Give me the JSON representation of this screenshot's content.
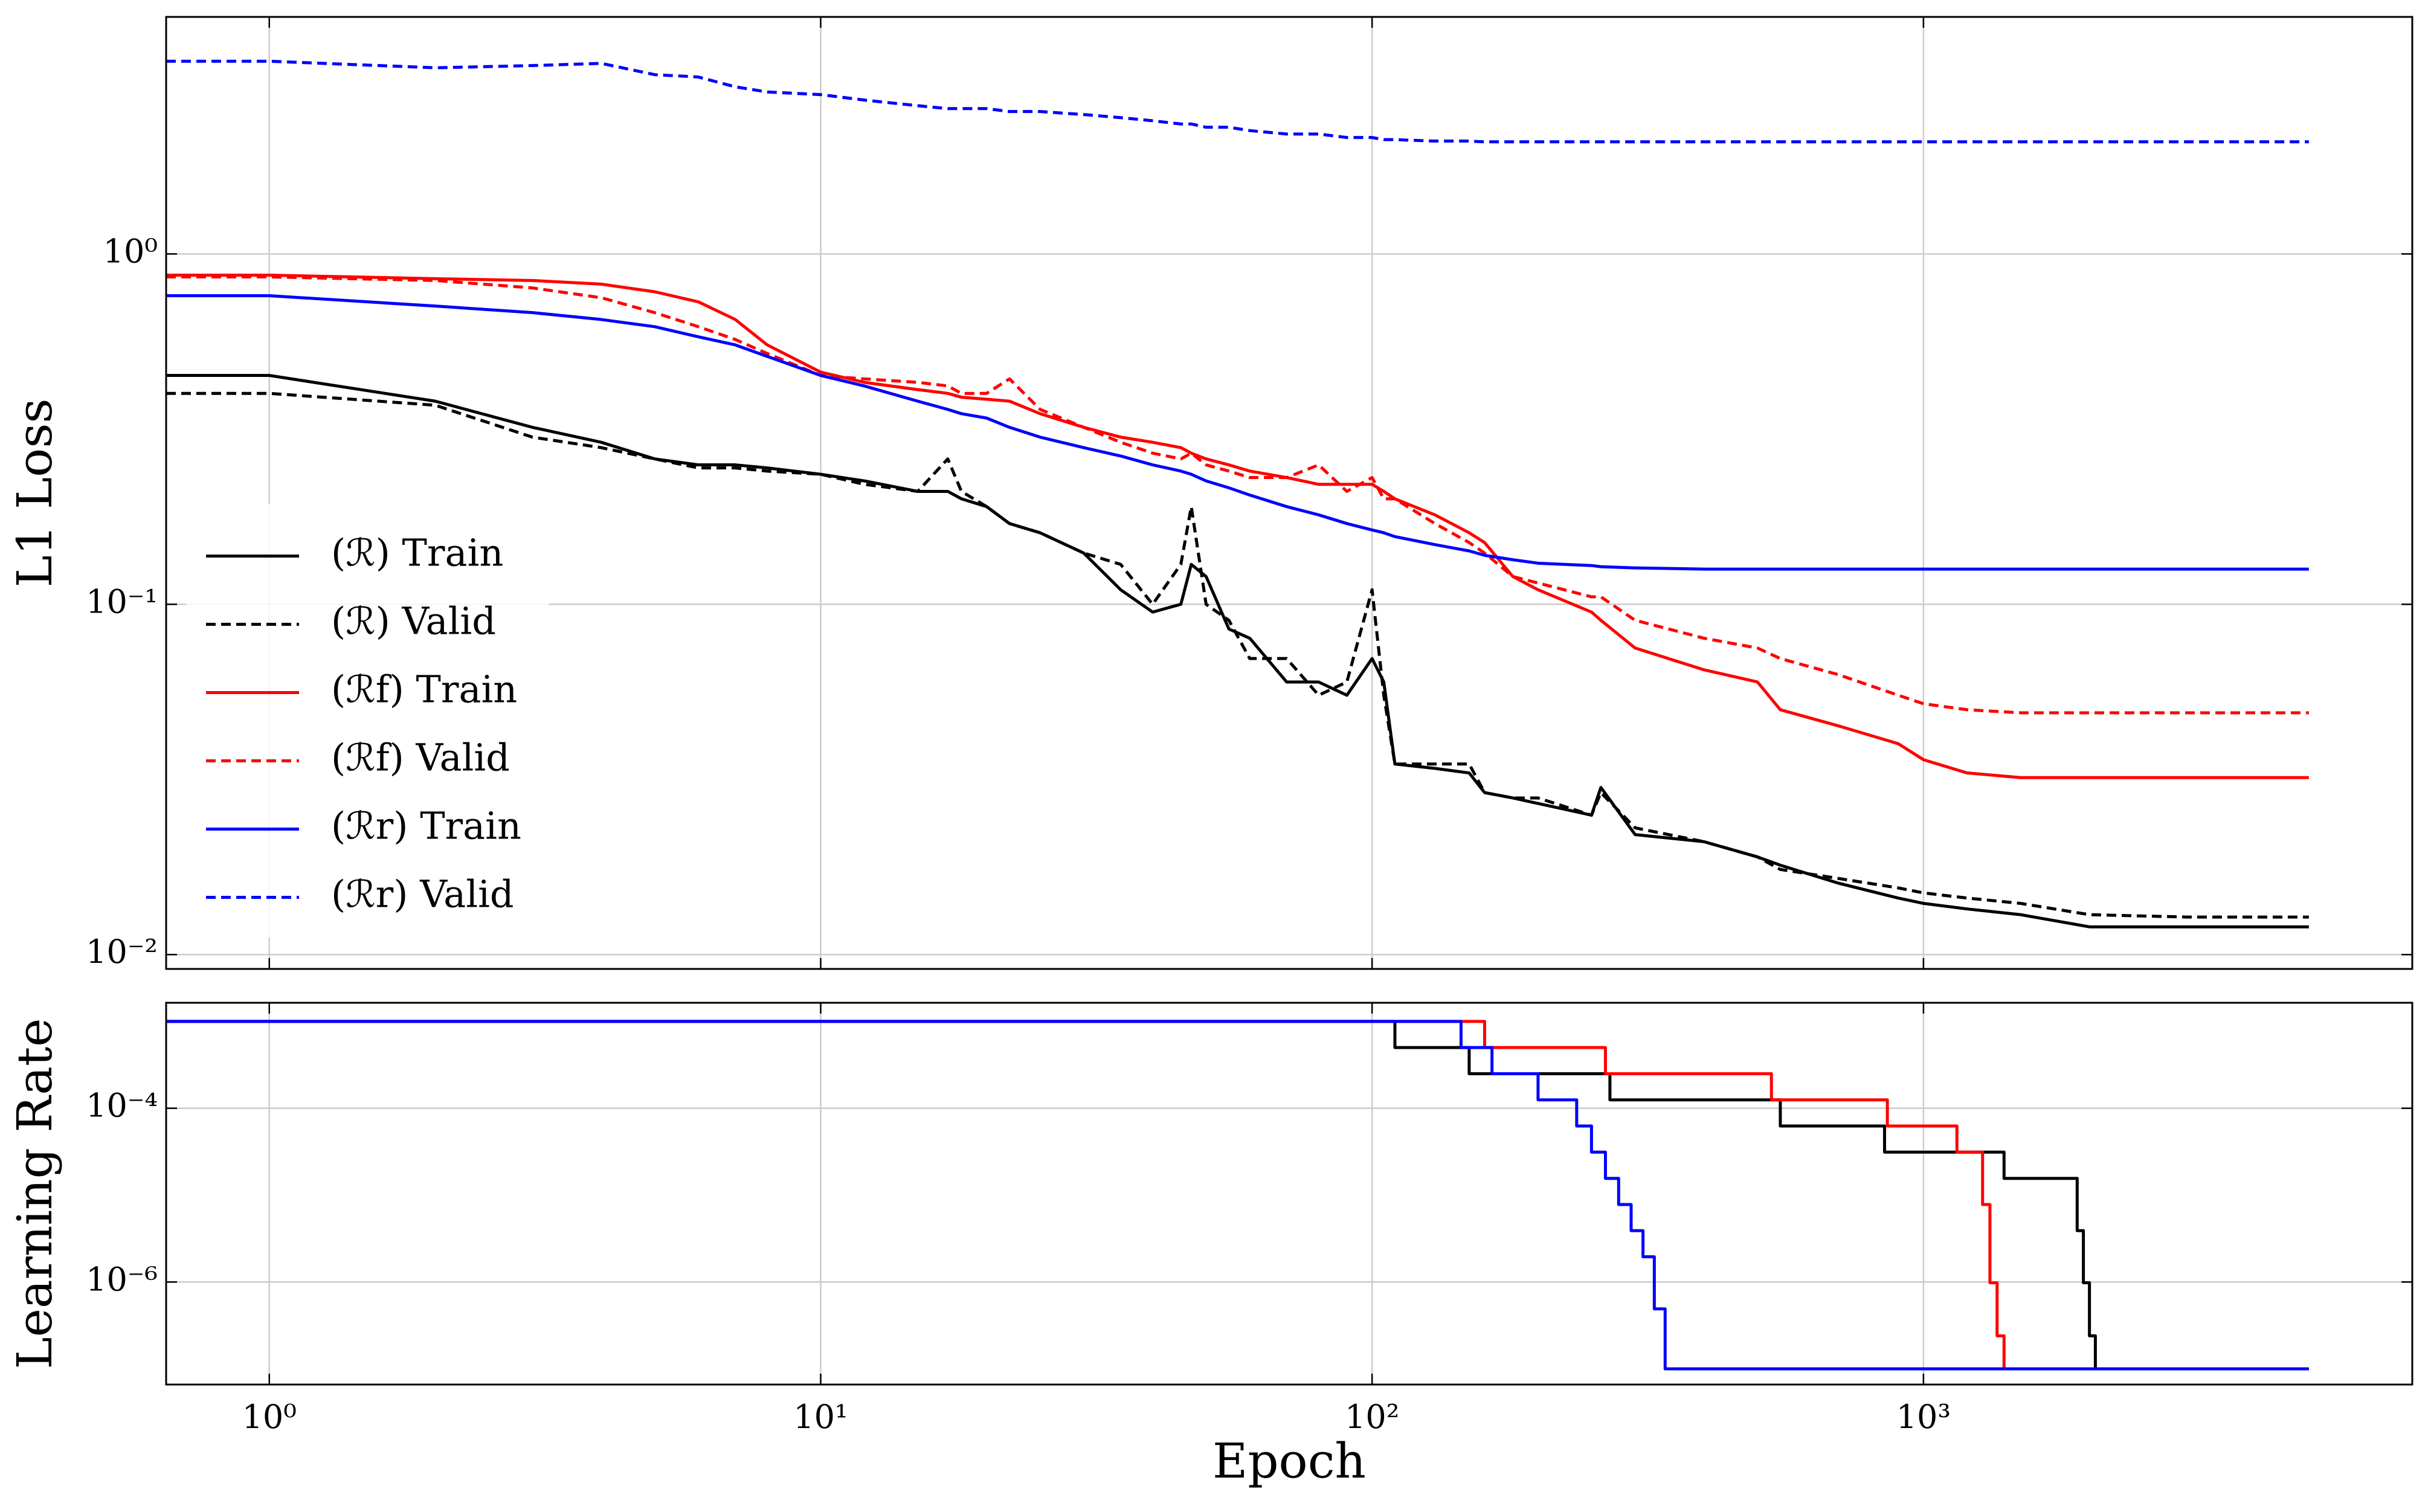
{
  "chart_data": [
    {
      "type": "line",
      "ylabel": "L1 Loss",
      "xscale": "log",
      "yscale": "log",
      "grid": true,
      "legend": "lower left",
      "xlim": [
        0.65,
        7700
      ],
      "ylim": [
        0.0091,
        4.75
      ],
      "xticks": [
        {
          "value": 1,
          "label": "10⁰"
        },
        {
          "value": 10,
          "label": "10¹"
        },
        {
          "value": 100,
          "label": "10²"
        },
        {
          "value": 1000,
          "label": "10³"
        }
      ],
      "yticks": [
        {
          "value": 0.01,
          "label": "10⁻²"
        },
        {
          "value": 0.1,
          "label": "10⁻¹"
        },
        {
          "value": 1,
          "label": "10⁰"
        }
      ],
      "x": [
        0.65,
        1,
        2,
        3,
        4,
        5,
        6,
        7,
        8,
        10,
        12,
        15,
        17,
        18,
        20,
        22,
        25,
        30,
        35,
        40,
        45,
        47,
        50,
        55,
        60,
        70,
        80,
        90,
        100,
        105,
        110,
        130,
        150,
        160,
        180,
        200,
        250,
        260,
        300,
        400,
        500,
        550,
        700,
        900,
        1000,
        1200,
        1500,
        2000,
        3000,
        5000
      ],
      "series": [
        {
          "name": "(ℛ) Train",
          "color": "#000000",
          "dash": false,
          "values": [
            0.45,
            0.45,
            0.38,
            0.32,
            0.29,
            0.26,
            0.25,
            0.25,
            0.245,
            0.235,
            0.225,
            0.21,
            0.21,
            0.2,
            0.19,
            0.17,
            0.16,
            0.14,
            0.11,
            0.095,
            0.1,
            0.13,
            0.12,
            0.085,
            0.08,
            0.06,
            0.06,
            0.055,
            0.07,
            0.06,
            0.035,
            0.034,
            0.033,
            0.029,
            0.028,
            0.027,
            0.025,
            0.03,
            0.022,
            0.021,
            0.019,
            0.018,
            0.016,
            0.0145,
            0.014,
            0.0135,
            0.013,
            0.012,
            0.012,
            0.012
          ]
        },
        {
          "name": "(ℛ) Valid",
          "color": "#000000",
          "dash": true,
          "values": [
            0.4,
            0.4,
            0.37,
            0.3,
            0.28,
            0.26,
            0.245,
            0.245,
            0.24,
            0.235,
            0.22,
            0.21,
            0.26,
            0.21,
            0.19,
            0.17,
            0.16,
            0.14,
            0.13,
            0.1,
            0.13,
            0.19,
            0.1,
            0.09,
            0.07,
            0.07,
            0.055,
            0.06,
            0.11,
            0.055,
            0.035,
            0.035,
            0.035,
            0.029,
            0.028,
            0.028,
            0.025,
            0.029,
            0.023,
            0.021,
            0.019,
            0.0175,
            0.0165,
            0.0155,
            0.015,
            0.0145,
            0.014,
            0.013,
            0.0128,
            0.0128
          ]
        },
        {
          "name": "(ℛf) Train",
          "color": "#ff0000",
          "dash": false,
          "values": [
            0.87,
            0.87,
            0.85,
            0.84,
            0.82,
            0.78,
            0.73,
            0.65,
            0.55,
            0.46,
            0.43,
            0.41,
            0.4,
            0.39,
            0.385,
            0.38,
            0.35,
            0.32,
            0.3,
            0.29,
            0.28,
            0.27,
            0.26,
            0.25,
            0.24,
            0.23,
            0.22,
            0.22,
            0.22,
            0.21,
            0.2,
            0.18,
            0.16,
            0.15,
            0.12,
            0.11,
            0.095,
            0.09,
            0.075,
            0.065,
            0.06,
            0.05,
            0.045,
            0.04,
            0.036,
            0.033,
            0.032,
            0.032,
            0.032,
            0.032
          ]
        },
        {
          "name": "(ℛf) Valid",
          "color": "#ff0000",
          "dash": true,
          "values": [
            0.86,
            0.86,
            0.84,
            0.8,
            0.75,
            0.68,
            0.62,
            0.57,
            0.52,
            0.45,
            0.44,
            0.43,
            0.42,
            0.4,
            0.4,
            0.44,
            0.36,
            0.32,
            0.29,
            0.27,
            0.26,
            0.27,
            0.25,
            0.24,
            0.23,
            0.23,
            0.25,
            0.21,
            0.23,
            0.2,
            0.2,
            0.17,
            0.15,
            0.14,
            0.12,
            0.115,
            0.105,
            0.105,
            0.09,
            0.08,
            0.075,
            0.07,
            0.063,
            0.055,
            0.052,
            0.05,
            0.049,
            0.049,
            0.049,
            0.049
          ]
        },
        {
          "name": "(ℛr) Train",
          "color": "#0000ff",
          "dash": false,
          "values": [
            0.76,
            0.76,
            0.71,
            0.68,
            0.65,
            0.62,
            0.58,
            0.55,
            0.51,
            0.45,
            0.42,
            0.38,
            0.36,
            0.35,
            0.34,
            0.32,
            0.3,
            0.28,
            0.265,
            0.25,
            0.24,
            0.235,
            0.225,
            0.215,
            0.205,
            0.19,
            0.18,
            0.17,
            0.163,
            0.16,
            0.156,
            0.148,
            0.142,
            0.138,
            0.134,
            0.131,
            0.129,
            0.128,
            0.127,
            0.126,
            0.126,
            0.126,
            0.126,
            0.126,
            0.126,
            0.126,
            0.126,
            0.126,
            0.126,
            0.126
          ]
        },
        {
          "name": "(ℛr) Valid",
          "color": "#0000ff",
          "dash": true,
          "values": [
            3.55,
            3.55,
            3.4,
            3.45,
            3.5,
            3.25,
            3.2,
            3.0,
            2.9,
            2.85,
            2.75,
            2.65,
            2.6,
            2.6,
            2.6,
            2.55,
            2.55,
            2.5,
            2.45,
            2.4,
            2.35,
            2.35,
            2.3,
            2.3,
            2.25,
            2.2,
            2.2,
            2.15,
            2.15,
            2.12,
            2.12,
            2.1,
            2.1,
            2.09,
            2.09,
            2.09,
            2.09,
            2.09,
            2.09,
            2.09,
            2.09,
            2.09,
            2.09,
            2.09,
            2.09,
            2.09,
            2.09,
            2.09,
            2.09,
            2.09
          ]
        }
      ]
    },
    {
      "type": "line",
      "ylabel": "Learning Rate",
      "xlabel": "Epoch",
      "xscale": "log",
      "yscale": "log",
      "grid": true,
      "xlim": [
        0.65,
        7700
      ],
      "ylim": [
        6.6e-08,
        0.00164
      ],
      "xticks": [
        {
          "value": 1,
          "label": "10⁰"
        },
        {
          "value": 10,
          "label": "10¹"
        },
        {
          "value": 100,
          "label": "10²"
        },
        {
          "value": 1000,
          "label": "10³"
        }
      ],
      "yticks": [
        {
          "value": 1e-06,
          "label": "10⁻⁶"
        },
        {
          "value": 0.0001,
          "label": "10⁻⁴"
        }
      ],
      "series": [
        {
          "color": "#000000",
          "dash": false,
          "x": [
            0.65,
            110,
            110,
            150,
            150,
            270,
            270,
            550,
            550,
            850,
            850,
            1400,
            1400,
            1900,
            1900,
            1950,
            1950,
            2000,
            2000,
            2050,
            2050,
            5000
          ],
          "values": [
            0.001,
            0.001,
            0.0005,
            0.0005,
            0.00025,
            0.00025,
            0.000125,
            0.000125,
            6.25e-05,
            6.25e-05,
            3.13e-05,
            3.13e-05,
            1.56e-05,
            1.56e-05,
            3.9e-06,
            3.9e-06,
            9.8e-07,
            9.8e-07,
            2.4e-07,
            2.4e-07,
            1e-07,
            1e-07
          ]
        },
        {
          "color": "#ff0000",
          "dash": false,
          "x": [
            0.65,
            160,
            160,
            265,
            265,
            530,
            530,
            860,
            860,
            1150,
            1150,
            1280,
            1280,
            1320,
            1320,
            1360,
            1360,
            1400,
            1400,
            5000
          ],
          "values": [
            0.001,
            0.001,
            0.0005,
            0.0005,
            0.00025,
            0.00025,
            0.000125,
            0.000125,
            6.25e-05,
            6.25e-05,
            3.13e-05,
            3.13e-05,
            7.8e-06,
            7.8e-06,
            9.8e-07,
            9.8e-07,
            2.4e-07,
            2.4e-07,
            1e-07,
            1e-07
          ]
        },
        {
          "color": "#0000ff",
          "dash": false,
          "x": [
            0.65,
            145,
            145,
            165,
            165,
            200,
            200,
            235,
            235,
            250,
            250,
            265,
            265,
            280,
            280,
            295,
            295,
            310,
            310,
            325,
            325,
            340,
            340,
            5000
          ],
          "values": [
            0.001,
            0.001,
            0.0005,
            0.0005,
            0.00025,
            0.00025,
            0.000125,
            0.000125,
            6.25e-05,
            6.25e-05,
            3.13e-05,
            3.13e-05,
            1.56e-05,
            1.56e-05,
            7.8e-06,
            7.8e-06,
            3.9e-06,
            3.9e-06,
            1.95e-06,
            1.95e-06,
            4.9e-07,
            4.9e-07,
            1e-07,
            1e-07
          ]
        }
      ]
    }
  ]
}
